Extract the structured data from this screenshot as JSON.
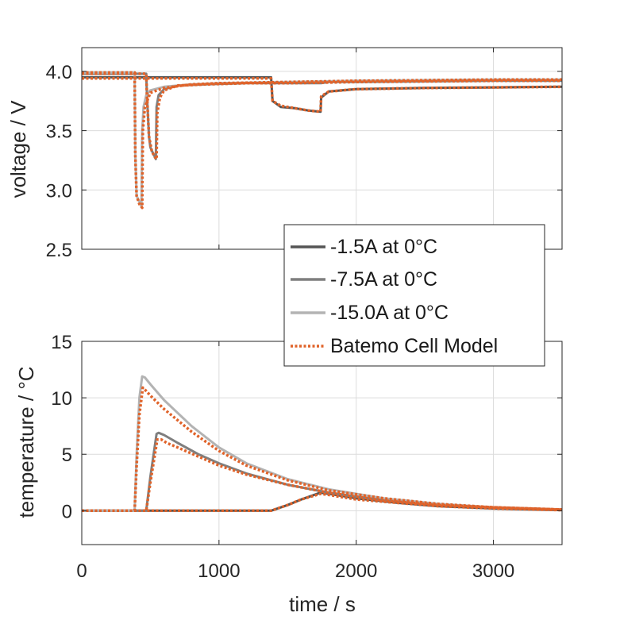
{
  "chart_data": [
    {
      "type": "line",
      "xlabel": "",
      "ylabel": "voltage / V",
      "xlim": [
        0,
        3500
      ],
      "ylim": [
        2.5,
        4.2
      ],
      "xticks": [
        0,
        1000,
        2000,
        3000
      ],
      "yticks": [
        2.5,
        3.0,
        3.5,
        4.0
      ],
      "ytick_labels": [
        "2.5",
        "3.0",
        "3.5",
        "4.0"
      ],
      "grid": true,
      "series": [
        {
          "name": "-1.5A at 0°C",
          "color": "#555555",
          "style": "solid",
          "x": [
            0,
            1380,
            1390,
            1450,
            1550,
            1650,
            1740,
            1745,
            1800,
            2000,
            2500,
            3000,
            3500
          ],
          "y": [
            3.95,
            3.95,
            3.75,
            3.7,
            3.69,
            3.67,
            3.66,
            3.78,
            3.83,
            3.85,
            3.86,
            3.865,
            3.87
          ]
        },
        {
          "name": "-7.5A at 0°C",
          "color": "#7f7f7f",
          "style": "solid",
          "x": [
            0,
            470,
            475,
            490,
            500,
            510,
            520,
            540,
            545,
            560,
            600,
            700,
            900,
            1200,
            1380,
            1400,
            1550,
            1740,
            1745,
            1800,
            2000,
            3000,
            3500
          ],
          "y": [
            3.98,
            3.98,
            3.8,
            3.45,
            3.36,
            3.33,
            3.31,
            3.26,
            3.7,
            3.8,
            3.85,
            3.88,
            3.89,
            3.9,
            3.9,
            3.9,
            3.9,
            3.9,
            3.9,
            3.91,
            3.91,
            3.92,
            3.92
          ]
        },
        {
          "name": "-15.0A at 0°C",
          "color": "#b3b3b3",
          "style": "solid",
          "x": [
            0,
            385,
            390,
            400,
            420,
            435,
            440,
            450,
            470,
            500,
            600,
            800,
            1000,
            1500,
            2000,
            3000,
            3500
          ],
          "y": [
            3.99,
            3.99,
            3.3,
            2.95,
            2.9,
            2.86,
            3.5,
            3.7,
            3.8,
            3.84,
            3.87,
            3.89,
            3.9,
            3.91,
            3.92,
            3.93,
            3.93
          ]
        },
        {
          "name": "Batemo Cell Model",
          "color": "#e0632a",
          "style": "dotted",
          "x": [
            0,
            385,
            390,
            400,
            420,
            440,
            445,
            460,
            500,
            600,
            800,
            1000,
            1500,
            2000,
            3000,
            3500
          ],
          "y": [
            3.99,
            3.99,
            3.3,
            2.95,
            2.88,
            2.85,
            3.5,
            3.7,
            3.82,
            3.86,
            3.89,
            3.9,
            3.91,
            3.92,
            3.93,
            3.93
          ]
        },
        {
          "name": "",
          "color": "#e0632a",
          "style": "dotted",
          "x": [
            0,
            470,
            475,
            490,
            510,
            530,
            545,
            550,
            570,
            600,
            700,
            900,
            1200,
            1500,
            2000,
            3000,
            3500
          ],
          "y": [
            3.98,
            3.98,
            3.8,
            3.45,
            3.33,
            3.28,
            3.26,
            3.65,
            3.78,
            3.84,
            3.88,
            3.89,
            3.9,
            3.9,
            3.91,
            3.92,
            3.92
          ]
        },
        {
          "name": "",
          "color": "#e0632a",
          "style": "dotted",
          "x": [
            0,
            1380,
            1390,
            1450,
            1550,
            1650,
            1740,
            1745,
            1800,
            2000,
            2500,
            3000,
            3500
          ],
          "y": [
            3.94,
            3.94,
            3.75,
            3.71,
            3.69,
            3.67,
            3.66,
            3.79,
            3.83,
            3.85,
            3.86,
            3.865,
            3.87
          ]
        }
      ]
    },
    {
      "type": "line",
      "xlabel": "time / s",
      "ylabel": "temperature / °C",
      "xlim": [
        0,
        3500
      ],
      "ylim": [
        -3,
        15
      ],
      "xticks": [
        0,
        1000,
        2000,
        3000
      ],
      "yticks": [
        0,
        5,
        10,
        15
      ],
      "ytick_labels": [
        "0",
        "5",
        "10",
        "15"
      ],
      "grid": true,
      "series": [
        {
          "name": "-1.5A at 0°C",
          "color": "#555555",
          "style": "solid",
          "x": [
            0,
            1380,
            1500,
            1600,
            1740,
            1800,
            2000,
            2300,
            2600,
            3000,
            3500
          ],
          "y": [
            0,
            0,
            0.5,
            1.0,
            1.6,
            1.5,
            1.1,
            0.7,
            0.4,
            0.2,
            0.05
          ]
        },
        {
          "name": "-7.5A at 0°C",
          "color": "#7f7f7f",
          "style": "solid",
          "x": [
            0,
            470,
            500,
            545,
            560,
            600,
            700,
            850,
            1000,
            1200,
            1500,
            1800,
            2200,
            2600,
            3000,
            3500
          ],
          "y": [
            0,
            0,
            3.0,
            6.8,
            6.9,
            6.7,
            6.0,
            5.0,
            4.2,
            3.3,
            2.3,
            1.6,
            0.9,
            0.5,
            0.3,
            0.1
          ]
        },
        {
          "name": "-15.0A at 0°C",
          "color": "#b3b3b3",
          "style": "solid",
          "x": [
            0,
            385,
            400,
            420,
            440,
            460,
            500,
            600,
            800,
            1000,
            1200,
            1500,
            1800,
            2200,
            2600,
            3000,
            3500
          ],
          "y": [
            0,
            0,
            5.0,
            10.0,
            11.9,
            11.8,
            11.2,
            9.8,
            7.5,
            5.6,
            4.2,
            2.8,
            1.9,
            1.1,
            0.6,
            0.3,
            0.1
          ]
        },
        {
          "name": "Batemo Cell Model",
          "color": "#e0632a",
          "style": "dotted",
          "x": [
            0,
            385,
            400,
            420,
            445,
            470,
            500,
            600,
            800,
            1000,
            1200,
            1500,
            1800,
            2200,
            2600,
            3000,
            3500
          ],
          "y": [
            0,
            0,
            4.0,
            8.5,
            10.9,
            10.6,
            10.2,
            9.0,
            7.0,
            5.3,
            4.0,
            2.7,
            1.8,
            1.1,
            0.6,
            0.3,
            0.1
          ]
        },
        {
          "name": "",
          "color": "#e0632a",
          "style": "dotted",
          "x": [
            0,
            470,
            500,
            550,
            580,
            620,
            700,
            850,
            1000,
            1200,
            1500,
            1800,
            2200,
            2600,
            3000,
            3500
          ],
          "y": [
            0,
            0,
            2.5,
            6.3,
            6.3,
            6.0,
            5.6,
            4.8,
            4.0,
            3.2,
            2.3,
            1.6,
            0.9,
            0.5,
            0.3,
            0.1
          ]
        },
        {
          "name": "",
          "color": "#e0632a",
          "style": "dotted",
          "x": [
            0,
            1380,
            1500,
            1600,
            1740,
            1800,
            2000,
            2300,
            2600,
            3000,
            3500
          ],
          "y": [
            0,
            0,
            0.5,
            1.0,
            1.5,
            1.4,
            1.0,
            0.7,
            0.4,
            0.2,
            0.05
          ]
        }
      ]
    }
  ],
  "legend": {
    "placement": "between panels, right",
    "entries": [
      {
        "label": "-1.5A at 0°C",
        "color": "#555555",
        "style": "solid"
      },
      {
        "label": "-7.5A at 0°C",
        "color": "#7f7f7f",
        "style": "solid"
      },
      {
        "label": "-15.0A at 0°C",
        "color": "#b3b3b3",
        "style": "solid"
      },
      {
        "label": "Batemo Cell Model",
        "color": "#e0632a",
        "style": "dotted"
      }
    ]
  },
  "xtick_labels": [
    "0",
    "1000",
    "2000",
    "3000"
  ]
}
